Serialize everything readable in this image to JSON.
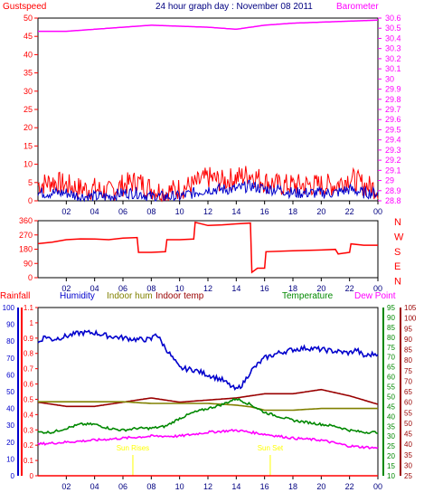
{
  "chart_data": [
    {
      "type": "line",
      "title": "24 hour graph day : November 08 2011",
      "x_ticks": [
        "02",
        "04",
        "06",
        "08",
        "10",
        "12",
        "14",
        "16",
        "18",
        "20",
        "22",
        "00"
      ],
      "left_axis": {
        "label": "Gustspeed",
        "ylim": [
          0,
          50
        ],
        "ticks": [
          "0",
          "5",
          "10",
          "15",
          "20",
          "25",
          "30",
          "35",
          "40",
          "45",
          "50"
        ]
      },
      "right_axis": {
        "label": "Barometer",
        "ylim": [
          28.8,
          30.6
        ],
        "ticks": [
          "28.8",
          "28.9",
          "29",
          "29.1",
          "29.2",
          "29.3",
          "29.4",
          "29.5",
          "29.6",
          "29.7",
          "29.8",
          "29.9",
          "30",
          "30.1",
          "30.2",
          "30.3",
          "30.4",
          "30.5",
          "30.6"
        ]
      },
      "series": [
        {
          "name": "Barometer",
          "axis": "right",
          "color": "#ff00ff",
          "x": [
            0,
            2,
            4,
            6,
            8,
            10,
            12,
            13,
            14,
            15,
            16,
            18,
            20,
            22,
            24
          ],
          "values": [
            30.47,
            30.47,
            30.49,
            30.51,
            30.53,
            30.52,
            30.51,
            30.5,
            30.49,
            30.51,
            30.53,
            30.55,
            30.56,
            30.57,
            30.58
          ]
        },
        {
          "name": "Gustspeed",
          "axis": "left",
          "color": "#ff0000",
          "x": [
            0,
            1,
            2,
            3,
            4,
            5,
            6,
            7,
            8,
            9,
            10,
            11,
            12,
            13,
            14,
            15,
            16,
            17,
            18,
            19,
            20,
            21,
            22,
            23,
            24
          ],
          "values": [
            4,
            5,
            4,
            3,
            3,
            2,
            4,
            5,
            3,
            2,
            3,
            4,
            6,
            5,
            6,
            7,
            5,
            4,
            4,
            4,
            4,
            4,
            6,
            4,
            3
          ]
        },
        {
          "color": "#0000cc",
          "x": [
            0,
            1,
            2,
            3,
            4,
            5,
            6,
            7,
            8,
            9,
            10,
            11,
            12,
            13,
            14,
            15,
            16,
            17,
            18,
            19,
            20,
            21,
            22,
            23,
            24
          ],
          "values": [
            2,
            2,
            2,
            1,
            1,
            1,
            2,
            2,
            1,
            1,
            1,
            2,
            3,
            3,
            3,
            4,
            3,
            3,
            2,
            2,
            2,
            2,
            3,
            2,
            2
          ]
        }
      ]
    },
    {
      "type": "line",
      "x_ticks": [
        "02",
        "04",
        "06",
        "08",
        "10",
        "12",
        "14",
        "16",
        "18",
        "20",
        "22",
        "00"
      ],
      "left_axis": {
        "ylim": [
          0,
          360
        ],
        "ticks": [
          "0",
          "90",
          "180",
          "270",
          "360"
        ]
      },
      "right_axis": {
        "labels": [
          "N",
          "W",
          "S",
          "E",
          "N"
        ]
      },
      "series": [
        {
          "color": "#ff0000",
          "x": [
            0,
            1,
            2,
            3,
            4,
            5,
            6,
            7,
            7.1,
            8,
            9,
            9.1,
            10,
            11,
            11.1,
            12,
            13,
            14,
            15,
            15.1,
            15.5,
            16,
            16.1,
            18,
            20,
            21,
            21.2,
            22,
            22.1,
            23,
            24
          ],
          "values": [
            215,
            220,
            240,
            245,
            240,
            240,
            250,
            250,
            160,
            160,
            160,
            240,
            240,
            240,
            350,
            330,
            330,
            340,
            345,
            30,
            60,
            60,
            160,
            170,
            175,
            175,
            150,
            160,
            210,
            205,
            205
          ]
        }
      ]
    },
    {
      "type": "line",
      "x_ticks": [
        "02",
        "04",
        "06",
        "08",
        "10",
        "12",
        "14",
        "16",
        "18",
        "20",
        "22",
        "00"
      ],
      "axes": [
        {
          "label": "Rainfall",
          "color": "#ff0000",
          "ylim": [
            0,
            1.1
          ],
          "ticks": [
            "0",
            "0.1",
            "0.2",
            "0.3",
            "0.4",
            "0.5",
            "0.6",
            "0.7",
            "0.8",
            "0.9",
            "1",
            "1.1"
          ]
        },
        {
          "label": "Humidity",
          "color": "#0000cc",
          "ylim": [
            0,
            100
          ],
          "ticks": [
            "0",
            "10",
            "20",
            "30",
            "40",
            "50",
            "60",
            "70",
            "80",
            "90",
            "100"
          ]
        },
        {
          "label": "Indoor hum",
          "color": "#808000"
        },
        {
          "label": "Indoor temp",
          "color": "#990000"
        },
        {
          "label": "Temperature",
          "color": "#008800",
          "ylim": [
            10,
            95
          ],
          "ticks": [
            "10",
            "15",
            "20",
            "25",
            "30",
            "35",
            "40",
            "45",
            "50",
            "55",
            "60",
            "65",
            "70",
            "75",
            "80",
            "85",
            "90",
            "95"
          ]
        },
        {
          "label": "Dew Point",
          "color": "#ff00ff"
        },
        {
          "color": "#990000",
          "ylim": [
            25,
            105
          ],
          "ticks": [
            "25",
            "30",
            "35",
            "40",
            "45",
            "50",
            "55",
            "60",
            "65",
            "70",
            "75",
            "80",
            "85",
            "90",
            "95",
            "100",
            "105"
          ]
        }
      ],
      "annotations": [
        {
          "text": "Sun Rises",
          "x": 6.7
        },
        {
          "text": "Sun Set",
          "x": 16.4
        }
      ],
      "series": [
        {
          "name": "Humidity",
          "color": "#0000cc",
          "ylim": [
            0,
            100
          ],
          "x": [
            0,
            0.5,
            1,
            2,
            3,
            4,
            5,
            6,
            7,
            8,
            8.3,
            9,
            10,
            11,
            12,
            13,
            13.5,
            14,
            14.5,
            15,
            16,
            17,
            18,
            19,
            20,
            21,
            22,
            22.5,
            23,
            24
          ],
          "values": [
            79,
            83,
            81,
            83,
            85,
            85,
            83,
            82,
            81,
            81,
            85,
            76,
            64,
            63,
            60,
            57,
            54,
            51,
            55,
            62,
            70,
            73,
            75,
            76,
            75,
            74,
            73,
            75,
            71,
            73
          ]
        },
        {
          "name": "Indoor temp",
          "color": "#990000",
          "ylim": [
            25,
            105
          ],
          "x": [
            0,
            2,
            4,
            6,
            8,
            10,
            12,
            14,
            16,
            18,
            20,
            22,
            24
          ],
          "values": [
            60,
            58,
            58,
            60,
            62,
            60,
            61,
            62,
            64,
            64,
            66,
            63,
            59
          ]
        },
        {
          "name": "Indoor hum",
          "color": "#808000",
          "ylim": [
            0,
            100
          ],
          "x": [
            0,
            2,
            4,
            6,
            8,
            10,
            12,
            14,
            15,
            16,
            18,
            20,
            22,
            24
          ],
          "values": [
            44,
            44,
            44,
            44,
            43,
            43,
            43,
            42,
            41,
            39,
            39,
            40,
            40,
            40
          ]
        },
        {
          "name": "Temperature",
          "color": "#008800",
          "ylim": [
            10,
            95
          ],
          "x": [
            0,
            1,
            2,
            3,
            4,
            5,
            6,
            7,
            8,
            9,
            10,
            11,
            12,
            13,
            14,
            15,
            16,
            17,
            18,
            19,
            20,
            21,
            22,
            23,
            24
          ],
          "values": [
            32,
            32,
            34,
            36,
            36,
            34,
            33,
            34,
            34,
            35,
            39,
            42,
            44,
            46,
            49,
            46,
            42,
            40,
            38,
            37,
            36,
            35,
            33,
            32,
            32
          ]
        },
        {
          "name": "Dew Point",
          "color": "#ff00ff",
          "ylim": [
            10,
            95
          ],
          "x": [
            0,
            2,
            4,
            6,
            8,
            10,
            12,
            14,
            15,
            16,
            18,
            20,
            22,
            24
          ],
          "values": [
            26,
            27,
            28,
            29,
            30,
            30,
            32,
            33,
            32,
            31,
            29,
            28,
            25,
            24
          ]
        },
        {
          "name": "Rainfall",
          "color": "#ff0000",
          "ylim": [
            0,
            1.1
          ],
          "x": [
            0,
            24
          ],
          "values": [
            0,
            0
          ]
        }
      ]
    }
  ]
}
